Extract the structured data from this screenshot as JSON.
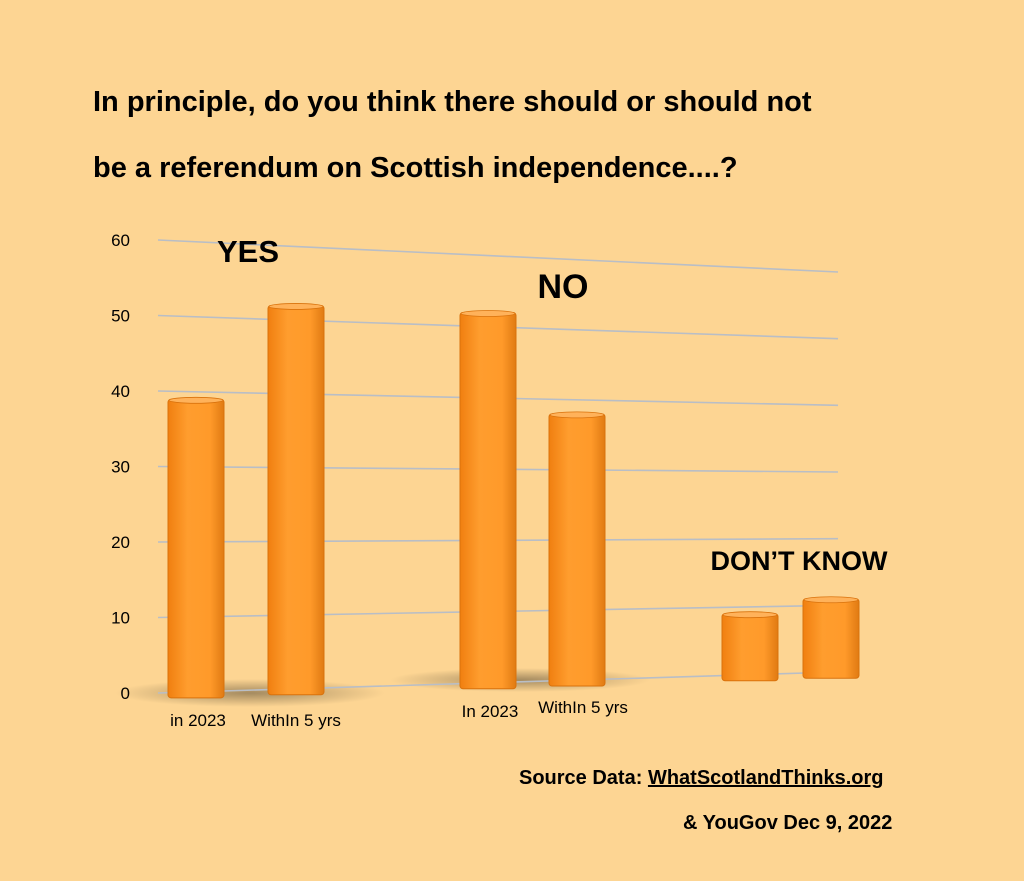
{
  "title": {
    "line1": "In principle, do you think there should or should not",
    "line2": "be a referendum on Scottish independence....?"
  },
  "source": {
    "prefix": "Source Data:",
    "link": "WhatScotlandThinks.org",
    "line2": "& YouGov Dec 9, 2022"
  },
  "colors": {
    "background": "#fdd593",
    "bar": "#ff9a2a",
    "gridline": "#b9bec6"
  },
  "chart_data": {
    "type": "bar",
    "title": "In principle, do you think there should or should not be a referendum on Scottish independence....?",
    "xlabel": "",
    "ylabel": "",
    "ylim": [
      0,
      60
    ],
    "yticks": [
      0,
      10,
      20,
      30,
      40,
      50,
      60
    ],
    "grid": true,
    "groups": [
      {
        "name": "YES",
        "bars": [
          {
            "label": "in 2023",
            "value": 39
          },
          {
            "label": "WithIn 5 yrs",
            "value": 52
          }
        ]
      },
      {
        "name": "NO",
        "bars": [
          {
            "label": "In 2023",
            "value": 52
          },
          {
            "label": "WithIn 5 yrs",
            "value": 38
          }
        ]
      },
      {
        "name": "DON’T KNOW",
        "bars": [
          {
            "label": "",
            "value": 9
          },
          {
            "label": "",
            "value": 11
          }
        ]
      }
    ]
  }
}
